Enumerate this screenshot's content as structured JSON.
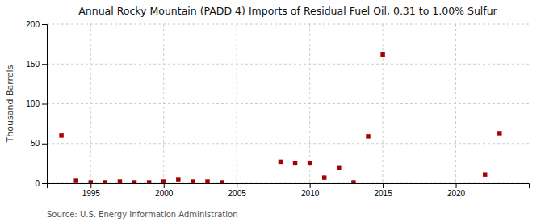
{
  "chart_data": {
    "type": "scatter",
    "title": "Annual Rocky Mountain (PADD 4) Imports of Residual Fuel Oil, 0.31 to 1.00% Sulfur",
    "ylabel": "Thousand Barrels",
    "source": "Source: U.S. Energy Information Administration",
    "x": [
      1993,
      1994,
      1995,
      1996,
      1997,
      1998,
      1999,
      2000,
      2001,
      2002,
      2003,
      2004,
      2008,
      2009,
      2010,
      2011,
      2012,
      2013,
      2014,
      2015,
      2022,
      2023
    ],
    "values": [
      60,
      3,
      1,
      1,
      2,
      1,
      1,
      2,
      5,
      2,
      2,
      1,
      27,
      25,
      25,
      7,
      19,
      1,
      59,
      162,
      11,
      63
    ],
    "color": "#aa0000",
    "marker": "square",
    "xlim": [
      1992,
      2025
    ],
    "xticks": [
      1995,
      2000,
      2005,
      2010,
      2015,
      2020
    ],
    "ylim": [
      0,
      200
    ],
    "yticks": [
      0,
      50,
      100,
      150,
      200
    ],
    "grid": true
  }
}
